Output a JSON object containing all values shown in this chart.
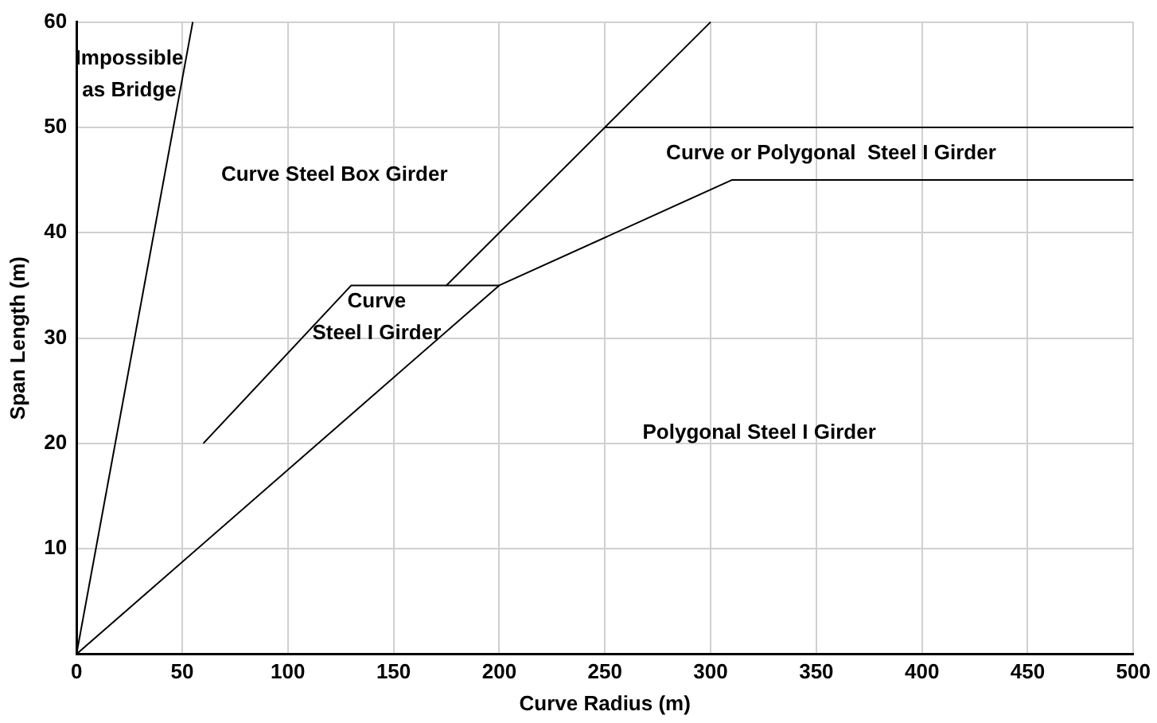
{
  "chart_data": {
    "type": "line",
    "xlabel": "Curve Radius (m)",
    "ylabel": "Span Length (m)",
    "series": [
      {
        "color": "#000000",
        "x": [
          0,
          55
        ],
        "values": [
          0,
          60
        ]
      },
      {
        "color": "#000000",
        "x": [
          0,
          200,
          310,
          500
        ],
        "values": [
          0,
          35,
          45,
          45
        ]
      },
      {
        "color": "#000000",
        "x": [
          60,
          130,
          200
        ],
        "values": [
          20,
          35,
          35
        ]
      },
      {
        "color": "#000000",
        "x": [
          175,
          300
        ],
        "values": [
          35,
          60
        ]
      },
      {
        "color": "#000000",
        "x": [
          250,
          500
        ],
        "values": [
          50,
          50
        ]
      }
    ],
    "xlim": [
      0,
      500
    ],
    "xticks": [
      0,
      50,
      100,
      150,
      200,
      250,
      300,
      350,
      400,
      450,
      500
    ],
    "ylim": [
      0,
      60
    ],
    "yticks": [
      10,
      20,
      30,
      40,
      50,
      60
    ],
    "annotations": [
      "Impossible\nas Bridge",
      "Curve Steel Box Girder",
      "Curve or Polygonal  Steel I Girder",
      "Curve\nSteel I Girder",
      "Polygonal Steel I Girder"
    ],
    "grid": true,
    "legend": false,
    "marker": "none",
    "line_style": "solid"
  }
}
